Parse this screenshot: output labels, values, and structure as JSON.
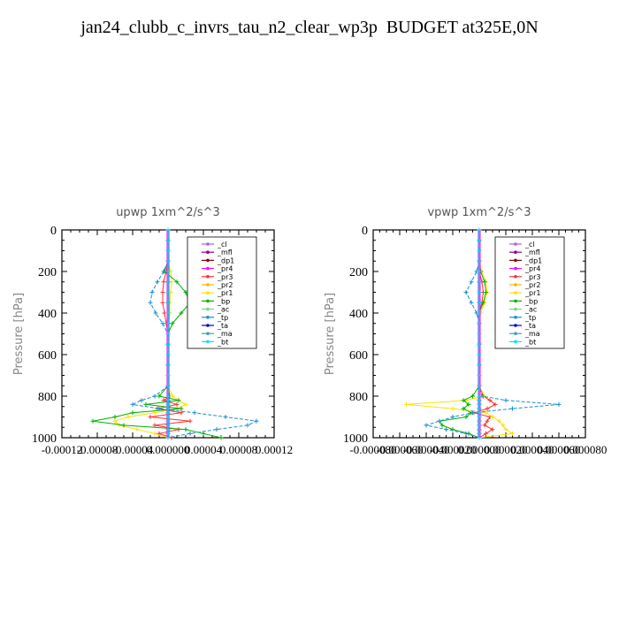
{
  "title": "jan24_clubb_c_invrs_tau_n2_clear_wp3p  BUDGET at325E,0N",
  "legend_items": [
    "_cl",
    "_mfl",
    "_dp1",
    "_pr4",
    "_pr3",
    "_pr2",
    "_pr1",
    "_bp",
    "_ac",
    "_tp",
    "_ta",
    "_ma",
    "_bt"
  ],
  "legend_colors": [
    "#b05fdc",
    "#8b008b",
    "#8b0000",
    "#ff00ff",
    "#ff3030",
    "#ffb000",
    "#ffe000",
    "#00b000",
    "#70e070",
    "#1a8fd0",
    "#0000cd",
    "#40a0c0",
    "#00e0ff"
  ],
  "chart_data": [
    {
      "type": "line",
      "title": "upwp   1xm^2/s^3",
      "ylabel": "Pressure [hPa]",
      "ylim": [
        1000,
        0
      ],
      "xlim": [
        -0.00012,
        0.00012
      ],
      "x_tick_labels": [
        "-0.00012",
        "-0.00008",
        "-0.00004",
        "0.000000",
        "0.00004",
        "0.00008",
        "0.00012"
      ],
      "y_tick_labels": [
        "0",
        "200",
        "400",
        "600",
        "800",
        "1000"
      ],
      "pressure": [
        0,
        50,
        100,
        150,
        200,
        250,
        300,
        350,
        400,
        450,
        500,
        550,
        600,
        650,
        700,
        750,
        800,
        820,
        840,
        860,
        880,
        900,
        920,
        940,
        960,
        980,
        1000
      ],
      "series": [
        {
          "name": "_cl",
          "values": [
            0,
            0,
            0,
            0,
            0,
            0,
            0,
            0,
            0,
            0,
            0,
            0,
            0,
            0,
            0,
            0,
            0,
            0,
            0,
            0,
            0,
            0,
            0,
            0,
            0,
            0,
            0
          ]
        },
        {
          "name": "_mfl",
          "values": [
            0,
            0,
            0,
            0,
            0,
            0,
            0,
            0,
            0,
            0,
            0,
            0,
            0,
            0,
            0,
            0,
            0,
            0,
            0,
            0,
            0,
            0,
            0,
            0,
            0,
            0,
            0
          ]
        },
        {
          "name": "_dp1",
          "values": [
            0,
            0,
            0,
            0,
            0,
            0,
            0,
            0,
            0,
            0,
            0,
            0,
            0,
            0,
            0,
            0,
            0,
            0,
            0,
            0,
            0,
            0,
            0,
            0,
            0,
            0,
            0
          ]
        },
        {
          "name": "_pr4",
          "values": [
            0,
            0,
            0,
            0,
            0,
            0,
            0,
            0,
            0,
            0,
            0,
            0,
            0,
            0,
            0,
            0,
            0,
            0,
            0,
            0,
            0,
            0,
            0,
            0,
            0,
            0,
            0
          ]
        },
        {
          "name": "_pr3",
          "values": [
            0,
            0,
            0,
            0,
            -2e-06,
            -5e-06,
            -6e-06,
            -6e-06,
            -4e-06,
            -2e-06,
            0,
            0,
            0,
            0,
            0,
            0,
            2e-06,
            -5e-06,
            1e-05,
            -1.2e-05,
            1.5e-05,
            -2e-05,
            2.5e-05,
            -1.5e-05,
            1.2e-05,
            -1e-05,
            4e-06
          ]
        },
        {
          "name": "_pr2",
          "values": [
            0,
            0,
            0,
            0,
            0,
            0,
            0,
            0,
            0,
            0,
            0,
            0,
            0,
            0,
            0,
            0,
            0,
            0,
            0,
            0,
            0,
            0,
            0,
            0,
            0,
            0,
            0
          ]
        },
        {
          "name": "_pr1",
          "values": [
            0,
            0,
            0,
            0,
            3e-06,
            4e-06,
            3e-06,
            2e-06,
            2e-06,
            1e-06,
            0,
            0,
            0,
            0,
            0,
            0,
            5e-06,
            1.2e-05,
            2e-05,
            1e-05,
            -1.5e-05,
            -4.5e-05,
            -6e-05,
            -5.5e-05,
            -3.5e-05,
            -1.5e-05,
            0
          ]
        },
        {
          "name": "_bp",
          "values": [
            0,
            0,
            0,
            0,
            -4e-06,
            1e-05,
            2e-05,
            2.5e-05,
            1.5e-05,
            5e-06,
            0,
            0,
            0,
            0,
            0,
            0,
            -1e-05,
            1.2e-05,
            -2.5e-05,
            1.5e-05,
            -4e-05,
            -6e-05,
            -8.5e-05,
            -5e-05,
            2e-05,
            4e-05,
            6e-05
          ]
        },
        {
          "name": "_ac",
          "values": [
            0,
            0,
            0,
            0,
            0,
            0,
            0,
            0,
            0,
            0,
            0,
            0,
            0,
            0,
            0,
            0,
            0,
            0,
            0,
            0,
            0,
            0,
            0,
            0,
            0,
            0,
            0
          ]
        },
        {
          "name": "_tp",
          "values": [
            0,
            0,
            0,
            0,
            -5e-06,
            -1.2e-05,
            -1.8e-05,
            -2e-05,
            -1.4e-05,
            -6e-06,
            0,
            0,
            0,
            0,
            0,
            0,
            -1.5e-05,
            -3e-05,
            -4e-05,
            -1e-05,
            3e-05,
            6.5e-05,
            0.0001,
            9e-05,
            5.5e-05,
            2.5e-05,
            0
          ]
        },
        {
          "name": "_ta",
          "values": [
            0,
            0,
            0,
            0,
            0,
            0,
            0,
            0,
            0,
            0,
            0,
            0,
            0,
            0,
            0,
            0,
            0,
            0,
            0,
            0,
            0,
            0,
            0,
            0,
            0,
            0,
            0
          ]
        },
        {
          "name": "_ma",
          "values": [
            0,
            0,
            0,
            0,
            0,
            0,
            0,
            0,
            0,
            0,
            0,
            0,
            0,
            0,
            0,
            0,
            0,
            0,
            0,
            0,
            0,
            0,
            0,
            0,
            0,
            0,
            0
          ]
        },
        {
          "name": "_bt",
          "values": [
            0,
            0,
            0,
            0,
            0,
            0,
            0,
            0,
            0,
            0,
            0,
            0,
            0,
            0,
            0,
            0,
            0,
            0,
            0,
            0,
            0,
            0,
            0,
            0,
            0,
            0,
            0
          ]
        }
      ]
    },
    {
      "type": "line",
      "title": "vpwp   1xm^2/s^3",
      "ylabel": "Pressure [hPa]",
      "ylim": [
        1000,
        0
      ],
      "xlim": [
        -8e-05,
        8e-05
      ],
      "x_tick_labels": [
        "-0.000080",
        "-0.000060",
        "-0.000040",
        "-0.000020",
        "0.000000",
        "0.000020",
        "0.000040",
        "0.000060",
        "0.000080"
      ],
      "y_tick_labels": [
        "0",
        "200",
        "400",
        "600",
        "800",
        "1000"
      ],
      "pressure": [
        0,
        50,
        100,
        150,
        200,
        250,
        300,
        350,
        400,
        450,
        500,
        550,
        600,
        650,
        700,
        750,
        800,
        820,
        840,
        860,
        880,
        900,
        920,
        940,
        960,
        980,
        1000
      ],
      "series": [
        {
          "name": "_cl",
          "values": [
            0,
            0,
            0,
            0,
            0,
            0,
            0,
            0,
            0,
            0,
            0,
            0,
            0,
            0,
            0,
            0,
            0,
            0,
            0,
            0,
            0,
            0,
            0,
            0,
            0,
            0,
            0
          ]
        },
        {
          "name": "_mfl",
          "values": [
            0,
            0,
            0,
            0,
            0,
            0,
            0,
            0,
            0,
            0,
            0,
            0,
            0,
            0,
            0,
            0,
            0,
            0,
            0,
            0,
            0,
            0,
            0,
            0,
            0,
            0,
            0
          ]
        },
        {
          "name": "_dp1",
          "values": [
            0,
            0,
            0,
            0,
            0,
            0,
            0,
            0,
            0,
            0,
            0,
            0,
            0,
            0,
            0,
            0,
            0,
            0,
            0,
            0,
            0,
            0,
            0,
            0,
            0,
            0,
            0
          ]
        },
        {
          "name": "_pr4",
          "values": [
            0,
            0,
            0,
            0,
            0,
            0,
            0,
            0,
            0,
            0,
            0,
            0,
            0,
            0,
            0,
            0,
            0,
            0,
            0,
            0,
            0,
            0,
            0,
            0,
            0,
            0,
            0
          ]
        },
        {
          "name": "_pr3",
          "values": [
            0,
            0,
            0,
            0,
            0,
            2e-06,
            3e-06,
            2e-06,
            0,
            0,
            0,
            0,
            0,
            0,
            0,
            0,
            3e-06,
            8e-06,
            1.2e-05,
            6e-06,
            -4e-06,
            8e-06,
            6e-06,
            4e-06,
            1e-05,
            5e-06,
            0
          ]
        },
        {
          "name": "_pr2",
          "values": [
            0,
            0,
            0,
            0,
            0,
            0,
            0,
            0,
            0,
            0,
            0,
            0,
            0,
            0,
            0,
            0,
            0,
            0,
            0,
            0,
            0,
            0,
            0,
            0,
            0,
            0,
            0
          ]
        },
        {
          "name": "_pr1",
          "values": [
            0,
            0,
            0,
            0,
            2e-06,
            5e-06,
            6e-06,
            4e-06,
            1e-06,
            0,
            0,
            0,
            0,
            0,
            0,
            0,
            4e-06,
            -1e-05,
            -5.5e-05,
            -2e-05,
            5e-06,
            1e-05,
            1.5e-05,
            1.8e-05,
            2e-05,
            2.5e-05,
            0
          ]
        },
        {
          "name": "_bp",
          "values": [
            0,
            0,
            0,
            0,
            1e-06,
            4e-06,
            5e-06,
            3e-06,
            0,
            0,
            0,
            0,
            0,
            0,
            0,
            0,
            -5e-06,
            -1.2e-05,
            -8e-06,
            -1.2e-05,
            -6e-06,
            -1e-05,
            -3e-05,
            -2.8e-05,
            -2e-05,
            -8e-06,
            0
          ]
        },
        {
          "name": "_ac",
          "values": [
            0,
            0,
            0,
            0,
            0,
            0,
            0,
            0,
            0,
            0,
            0,
            0,
            0,
            0,
            0,
            0,
            0,
            0,
            0,
            0,
            0,
            0,
            0,
            0,
            0,
            0,
            0
          ]
        },
        {
          "name": "_tp",
          "values": [
            0,
            0,
            0,
            0,
            -2e-06,
            -6e-06,
            -1e-05,
            -6e-06,
            -2e-06,
            0,
            0,
            0,
            0,
            0,
            0,
            0,
            2e-06,
            2e-05,
            6e-05,
            2.5e-05,
            -5e-06,
            -2e-05,
            -3e-05,
            -4e-05,
            -2.5e-05,
            -1e-05,
            0
          ]
        },
        {
          "name": "_ta",
          "values": [
            0,
            0,
            0,
            0,
            0,
            0,
            0,
            0,
            0,
            0,
            0,
            0,
            0,
            0,
            0,
            0,
            0,
            0,
            0,
            0,
            0,
            0,
            0,
            0,
            0,
            0,
            0
          ]
        },
        {
          "name": "_ma",
          "values": [
            0,
            0,
            0,
            0,
            0,
            0,
            0,
            0,
            0,
            0,
            0,
            0,
            0,
            0,
            0,
            0,
            0,
            0,
            0,
            0,
            0,
            0,
            0,
            0,
            0,
            0,
            0
          ]
        },
        {
          "name": "_bt",
          "values": [
            0,
            0,
            0,
            0,
            0,
            0,
            0,
            0,
            0,
            0,
            0,
            0,
            0,
            0,
            0,
            0,
            0,
            0,
            0,
            0,
            0,
            0,
            0,
            0,
            0,
            0,
            0
          ]
        }
      ]
    }
  ]
}
